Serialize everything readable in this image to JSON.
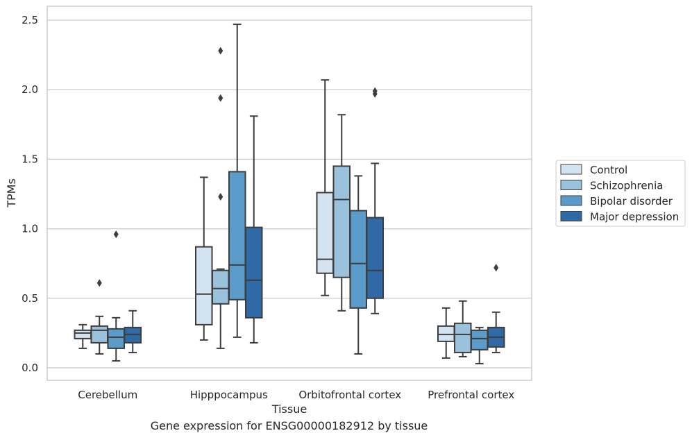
{
  "caption": "Gene expression for ENSG00000182912 by tissue",
  "chart_data": {
    "type": "box",
    "title": "",
    "xlabel": "Tissue",
    "ylabel": "TPMs",
    "ylim": [
      -0.09,
      2.6
    ],
    "yticks": [
      "0.0",
      "0.5",
      "1.0",
      "1.5",
      "2.0",
      "2.5"
    ],
    "grid": true,
    "legend_position": "right",
    "categories": [
      "Cerebellum",
      "Hipppocampus",
      "Orbitofrontal cortex",
      "Prefrontal cortex"
    ],
    "series": [
      {
        "name": "Control",
        "color": "#d4e3f2",
        "boxes": [
          {
            "whisker_low": 0.14,
            "q1": 0.21,
            "median": 0.25,
            "q3": 0.27,
            "whisker_high": 0.31,
            "outliers": []
          },
          {
            "whisker_low": 0.2,
            "q1": 0.31,
            "median": 0.53,
            "q3": 0.87,
            "whisker_high": 1.37,
            "outliers": []
          },
          {
            "whisker_low": 0.52,
            "q1": 0.68,
            "median": 0.78,
            "q3": 1.26,
            "whisker_high": 2.07,
            "outliers": []
          },
          {
            "whisker_low": 0.07,
            "q1": 0.19,
            "median": 0.24,
            "q3": 0.3,
            "whisker_high": 0.43,
            "outliers": []
          }
        ]
      },
      {
        "name": "Schizophrenia",
        "color": "#9ac2dc",
        "boxes": [
          {
            "whisker_low": 0.1,
            "q1": 0.18,
            "median": 0.27,
            "q3": 0.3,
            "whisker_high": 0.37,
            "outliers": [
              0.61
            ]
          },
          {
            "whisker_low": 0.14,
            "q1": 0.46,
            "median": 0.57,
            "q3": 0.7,
            "whisker_high": 0.71,
            "outliers": [
              1.23,
              1.94,
              2.28
            ]
          },
          {
            "whisker_low": 0.41,
            "q1": 0.65,
            "median": 1.21,
            "q3": 1.45,
            "whisker_high": 1.82,
            "outliers": []
          },
          {
            "whisker_low": 0.08,
            "q1": 0.11,
            "median": 0.24,
            "q3": 0.32,
            "whisker_high": 0.48,
            "outliers": []
          }
        ]
      },
      {
        "name": "Bipolar disorder",
        "color": "#5a9bc9",
        "boxes": [
          {
            "whisker_low": 0.05,
            "q1": 0.14,
            "median": 0.22,
            "q3": 0.28,
            "whisker_high": 0.36,
            "outliers": [
              0.96
            ]
          },
          {
            "whisker_low": 0.22,
            "q1": 0.49,
            "median": 0.74,
            "q3": 1.41,
            "whisker_high": 2.47,
            "outliers": []
          },
          {
            "whisker_low": 0.1,
            "q1": 0.43,
            "median": 0.75,
            "q3": 1.13,
            "whisker_high": 1.38,
            "outliers": []
          },
          {
            "whisker_low": 0.03,
            "q1": 0.13,
            "median": 0.21,
            "q3": 0.27,
            "whisker_high": 0.29,
            "outliers": []
          }
        ]
      },
      {
        "name": "Major depression",
        "color": "#2f6aa6",
        "boxes": [
          {
            "whisker_low": 0.11,
            "q1": 0.18,
            "median": 0.24,
            "q3": 0.29,
            "whisker_high": 0.41,
            "outliers": []
          },
          {
            "whisker_low": 0.18,
            "q1": 0.36,
            "median": 0.63,
            "q3": 1.01,
            "whisker_high": 1.81,
            "outliers": []
          },
          {
            "whisker_low": 0.39,
            "q1": 0.5,
            "median": 0.7,
            "q3": 1.08,
            "whisker_high": 1.47,
            "outliers": [
              1.97,
              1.99
            ]
          },
          {
            "whisker_low": 0.11,
            "q1": 0.15,
            "median": 0.22,
            "q3": 0.29,
            "whisker_high": 0.4,
            "outliers": [
              0.72
            ]
          }
        ]
      }
    ]
  }
}
